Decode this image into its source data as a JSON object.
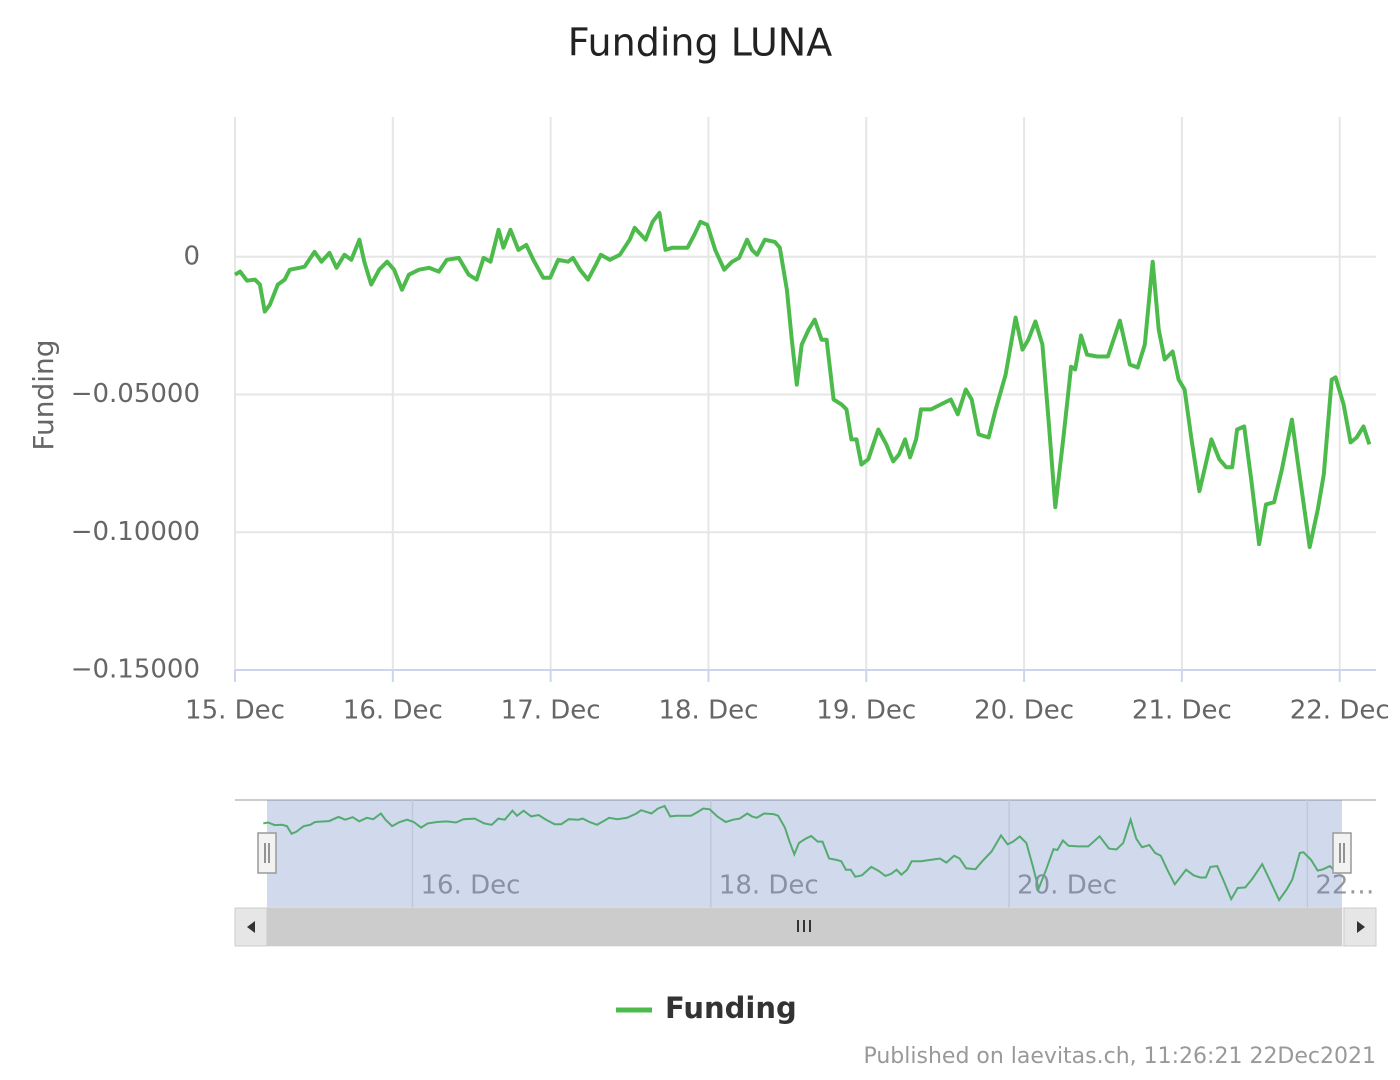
{
  "chart_data": {
    "type": "line",
    "title": "Funding LUNA",
    "y_label": "Funding",
    "x": [
      15.0,
      15.032,
      15.076,
      15.126,
      15.158,
      15.189,
      15.221,
      15.271,
      15.315,
      15.347,
      15.41,
      15.441,
      15.504,
      15.548,
      15.599,
      15.643,
      15.693,
      15.737,
      15.788,
      15.819,
      15.863,
      15.914,
      15.964,
      16.008,
      16.058,
      16.102,
      16.166,
      16.229,
      16.292,
      16.342,
      16.418,
      16.481,
      16.531,
      16.575,
      16.619,
      16.67,
      16.701,
      16.745,
      16.796,
      16.846,
      16.89,
      16.953,
      16.997,
      17.048,
      17.111,
      17.142,
      17.186,
      17.237,
      17.287,
      17.318,
      17.375,
      17.438,
      17.501,
      17.533,
      17.602,
      17.646,
      17.69,
      17.728,
      17.772,
      17.867,
      17.911,
      17.949,
      17.993,
      18.043,
      18.1,
      18.15,
      18.194,
      18.245,
      18.276,
      18.308,
      18.358,
      18.421,
      18.452,
      18.497,
      18.528,
      18.56,
      18.591,
      18.635,
      18.673,
      18.717,
      18.749,
      18.793,
      18.843,
      18.875,
      18.906,
      18.938,
      18.969,
      19.013,
      19.076,
      19.127,
      19.171,
      19.208,
      19.246,
      19.278,
      19.316,
      19.347,
      19.41,
      19.473,
      19.536,
      19.58,
      19.631,
      19.668,
      19.712,
      19.775,
      19.82,
      19.883,
      19.946,
      19.99,
      20.027,
      20.072,
      20.116,
      20.16,
      20.198,
      20.248,
      20.298,
      20.324,
      20.361,
      20.399,
      20.462,
      20.531,
      20.607,
      20.67,
      20.72,
      20.765,
      20.815,
      20.853,
      20.891,
      20.941,
      20.979,
      21.017,
      21.061,
      21.111,
      21.143,
      21.187,
      21.237,
      21.281,
      21.319,
      21.35,
      21.395,
      21.439,
      21.489,
      21.533,
      21.584,
      21.634,
      21.697,
      21.741,
      21.81,
      21.861,
      21.899,
      21.949,
      21.974,
      22.025,
      22.069,
      22.107,
      22.151,
      22.188
    ],
    "series": [
      {
        "name": "Funding",
        "color": "#4cbb4c",
        "values": [
          -0.0065,
          -0.0054,
          -0.0087,
          -0.0083,
          -0.0101,
          -0.0199,
          -0.0174,
          -0.0101,
          -0.0083,
          -0.0047,
          -0.004,
          -0.0036,
          0.0018,
          -0.0018,
          0.0014,
          -0.004,
          0.0007,
          -0.0011,
          0.0062,
          -0.0018,
          -0.0101,
          -0.0047,
          -0.0018,
          -0.0047,
          -0.012,
          -0.0065,
          -0.0047,
          -0.004,
          -0.0054,
          -0.0011,
          -0.0004,
          -0.0065,
          -0.0083,
          -0.0004,
          -0.0018,
          0.0098,
          0.0033,
          0.0098,
          0.0025,
          0.0043,
          -0.0011,
          -0.0076,
          -0.0076,
          -0.0011,
          -0.0018,
          -0.0004,
          -0.0047,
          -0.0083,
          -0.0029,
          0.0007,
          -0.0011,
          0.0007,
          0.0062,
          0.0105,
          0.0062,
          0.0127,
          0.0159,
          0.0025,
          0.0033,
          0.0033,
          0.008,
          0.0127,
          0.0116,
          0.0025,
          -0.0047,
          -0.0018,
          -0.0004,
          0.0062,
          0.0025,
          0.0007,
          0.0062,
          0.0054,
          0.0033,
          -0.012,
          -0.0301,
          -0.0464,
          -0.0319,
          -0.0264,
          -0.0228,
          -0.0301,
          -0.0301,
          -0.0518,
          -0.0536,
          -0.0554,
          -0.0663,
          -0.0663,
          -0.0754,
          -0.0735,
          -0.0627,
          -0.0681,
          -0.0743,
          -0.0717,
          -0.0663,
          -0.0728,
          -0.0663,
          -0.0554,
          -0.0554,
          -0.0536,
          -0.0518,
          -0.0572,
          -0.0482,
          -0.0518,
          -0.0645,
          -0.0656,
          -0.0554,
          -0.0428,
          -0.0221,
          -0.0337,
          -0.0301,
          -0.0235,
          -0.0319,
          -0.0627,
          -0.0909,
          -0.0663,
          -0.0399,
          -0.0409,
          -0.0286,
          -0.0355,
          -0.0362,
          -0.0362,
          -0.0232,
          -0.0391,
          -0.0402,
          -0.0319,
          -0.0018,
          -0.0264,
          -0.0373,
          -0.0344,
          -0.0446,
          -0.0482,
          -0.0663,
          -0.0851,
          -0.0772,
          -0.0663,
          -0.0735,
          -0.0764,
          -0.0764,
          -0.0627,
          -0.0616,
          -0.0808,
          -0.1043,
          -0.0899,
          -0.0891,
          -0.0772,
          -0.0591,
          -0.0772,
          -0.1054,
          -0.0917,
          -0.079,
          -0.0446,
          -0.0438,
          -0.0536,
          -0.0674,
          -0.0656,
          -0.0616,
          -0.0681
        ]
      }
    ],
    "xlim": [
      15,
      22.23
    ],
    "xticks": [
      {
        "value": 15,
        "label": "15. Dec"
      },
      {
        "value": 16,
        "label": "16. Dec"
      },
      {
        "value": 17,
        "label": "17. Dec"
      },
      {
        "value": 18,
        "label": "18. Dec"
      },
      {
        "value": 19,
        "label": "19. Dec"
      },
      {
        "value": 20,
        "label": "20. Dec"
      },
      {
        "value": 21,
        "label": "21. Dec"
      },
      {
        "value": 22,
        "label": "22. Dec"
      }
    ],
    "ylim": [
      -0.15,
      0.05
    ],
    "yticks": [
      {
        "value": -0.15,
        "label": "−0.15000"
      },
      {
        "value": -0.1,
        "label": "−0.10000"
      },
      {
        "value": -0.05,
        "label": "−0.05000"
      },
      0
    ],
    "grid": true,
    "legend": "bottom",
    "navigator": {
      "xlim": [
        14.81,
        22.46
      ],
      "xticks": [
        {
          "value": 16,
          "label": "16. Dec"
        },
        {
          "value": 18,
          "label": "18. Dec"
        },
        {
          "value": 20,
          "label": "20. Dec"
        },
        {
          "value": 22,
          "label": "22…"
        }
      ]
    },
    "credits": "Published on laevitas.ch, 11:26:21 22Dec2021"
  }
}
